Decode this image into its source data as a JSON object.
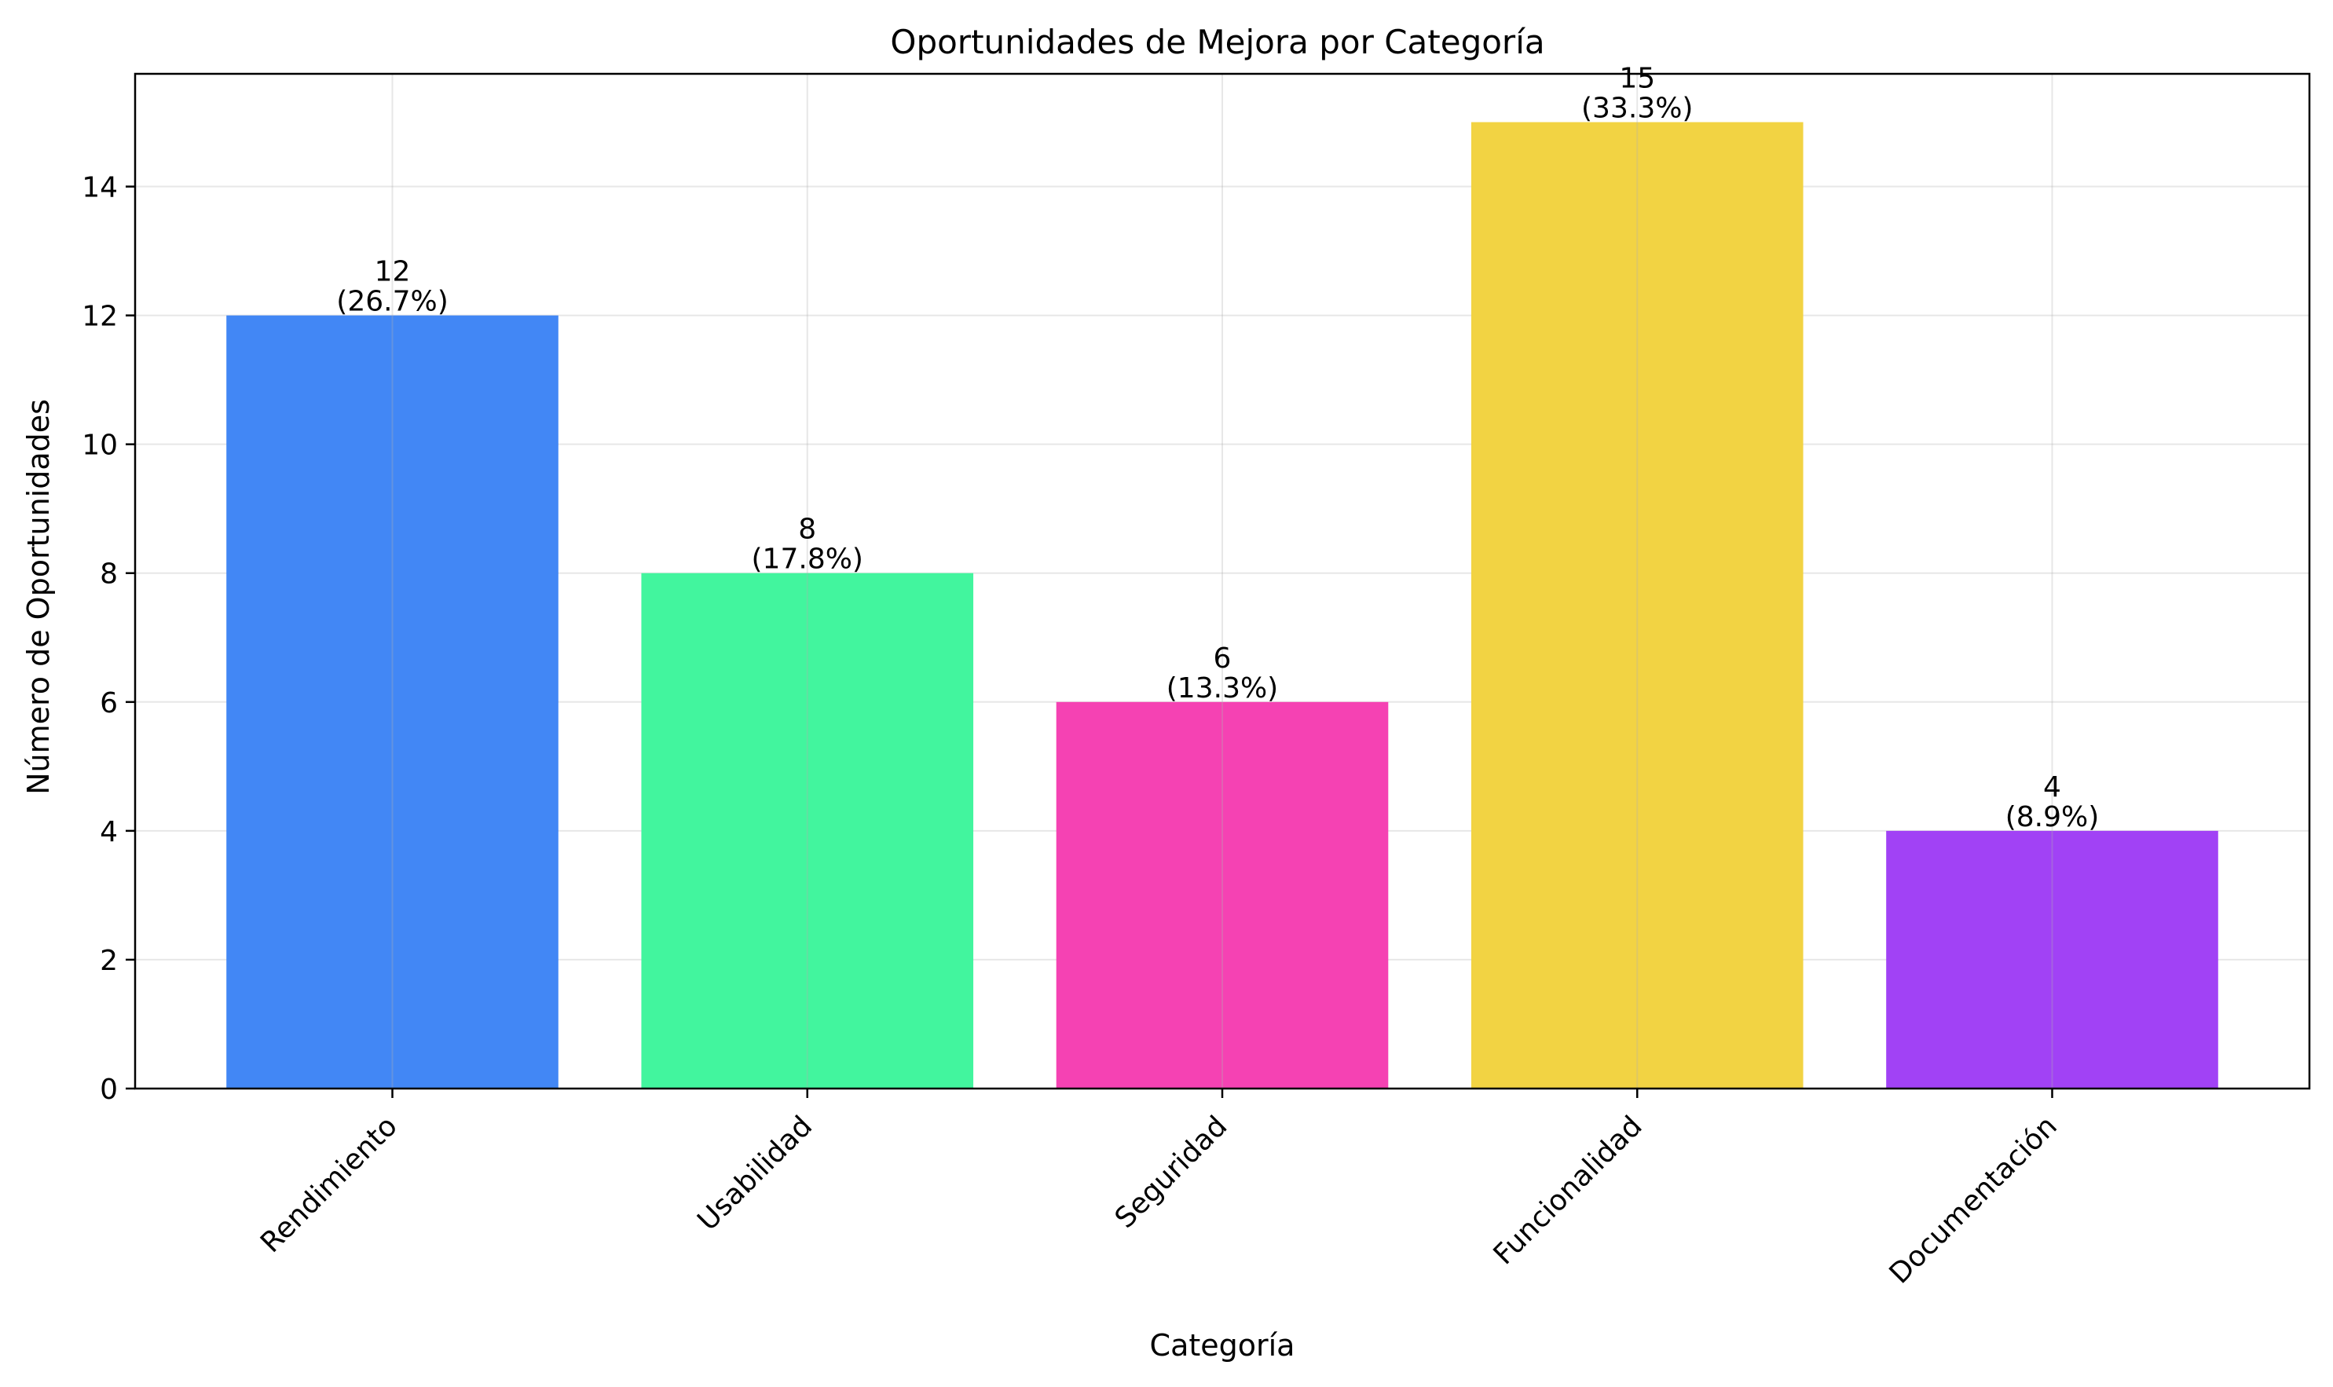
{
  "chart_data": {
    "type": "bar",
    "title": "Oportunidades de Mejora por Categoría",
    "xlabel": "Categoría",
    "ylabel": "Número de Oportunidades",
    "categories": [
      "Rendimiento",
      "Usabilidad",
      "Seguridad",
      "Funcionalidad",
      "Documentación"
    ],
    "values": [
      12,
      8,
      6,
      15,
      4
    ],
    "percent_labels": [
      "(26.7%)",
      "(17.8%)",
      "(13.3%)",
      "(33.3%)",
      "(8.9%)"
    ],
    "colors": [
      "#4287f5",
      "#42f59e",
      "#f542b3",
      "#f2d343",
      "#a142f5"
    ],
    "ylim": [
      0,
      15.75
    ],
    "yticks": [
      0,
      2,
      4,
      6,
      8,
      10,
      12,
      14
    ],
    "grid": true,
    "legend": "none"
  }
}
